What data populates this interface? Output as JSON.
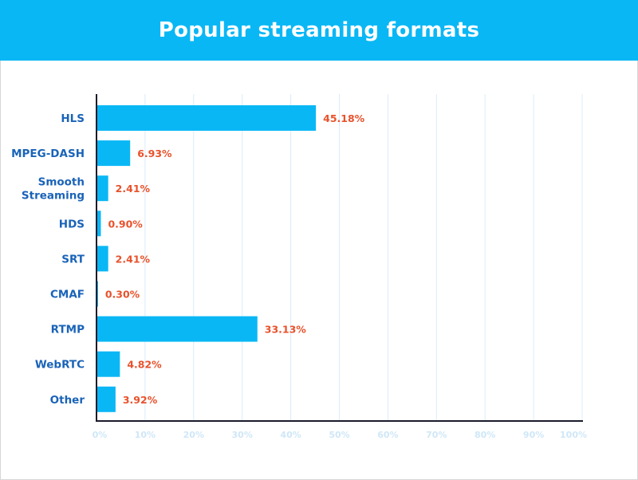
{
  "chart_data": {
    "type": "bar",
    "orientation": "horizontal",
    "title": "Popular streaming formats",
    "categories": [
      "HLS",
      "MPEG-DASH",
      "Smooth Streaming",
      "HDS",
      "SRT",
      "CMAF",
      "RTMP",
      "WebRTC",
      "Other"
    ],
    "category_lines": [
      [
        "HLS"
      ],
      [
        "MPEG-DASH"
      ],
      [
        "Smooth",
        "Streaming"
      ],
      [
        "HDS"
      ],
      [
        "SRT"
      ],
      [
        "CMAF"
      ],
      [
        "RTMP"
      ],
      [
        "WebRTC"
      ],
      [
        "Other"
      ]
    ],
    "values": [
      45.18,
      6.93,
      2.41,
      0.9,
      2.41,
      0.3,
      33.13,
      4.82,
      3.92
    ],
    "value_labels": [
      "45.18%",
      "6.93%",
      "2.41%",
      "0.90%",
      "2.41%",
      "0.30%",
      "33.13%",
      "4.82%",
      "3.92%"
    ],
    "xlim": [
      0,
      100
    ],
    "xticks": [
      "0%",
      "10%",
      "20%",
      "30%",
      "40%",
      "50%",
      "60%",
      "70%",
      "80%",
      "90%",
      "100%"
    ],
    "grid": true,
    "colors": {
      "bar": "#0ab7f5",
      "value_label": "#e8522c",
      "category_label": "#1a63b8",
      "grid": "#d9ecfa",
      "header": "#0ab7f5"
    }
  }
}
